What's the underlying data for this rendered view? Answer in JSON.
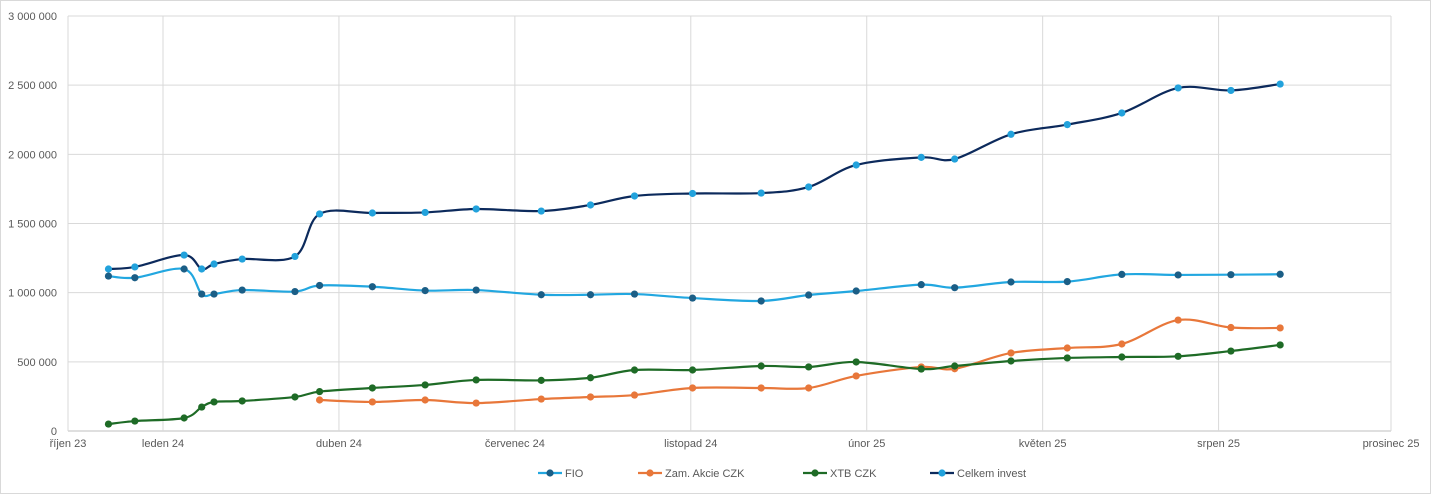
{
  "chart_data": {
    "type": "line",
    "title": "",
    "xlabel": "",
    "ylabel": "",
    "x_unit": "days from axis start (říjen 23)",
    "xlim": [
      0,
      752
    ],
    "ylim": [
      0,
      3000000
    ],
    "grid": true,
    "legend_position": "bottom",
    "y_ticks": [
      {
        "value": 0,
        "label": "0"
      },
      {
        "value": 500000,
        "label": "500 000"
      },
      {
        "value": 1000000,
        "label": "1 000 000"
      },
      {
        "value": 1500000,
        "label": "1 500 000"
      },
      {
        "value": 2000000,
        "label": "2 000 000"
      },
      {
        "value": 2500000,
        "label": "2 500 000"
      },
      {
        "value": 3000000,
        "label": "3 000 000"
      }
    ],
    "x_ticks": [
      {
        "value": 0,
        "label": "říjen 23"
      },
      {
        "value": 54,
        "label": "leden 24"
      },
      {
        "value": 154,
        "label": "duben 24"
      },
      {
        "value": 254,
        "label": "červenec 24"
      },
      {
        "value": 354,
        "label": "listopad 24"
      },
      {
        "value": 454,
        "label": "únor 25"
      },
      {
        "value": 554,
        "label": "květen 25"
      },
      {
        "value": 654,
        "label": "srpen 25"
      },
      {
        "value": 752,
        "label": "prosinec 25"
      }
    ],
    "series": [
      {
        "name": "FIO",
        "line_color": "#22a7e0",
        "marker_color": "#1b5e86",
        "x": [
          23,
          38,
          66,
          76,
          83,
          99,
          129,
          143,
          173,
          203,
          232,
          269,
          297,
          322,
          355,
          394,
          421,
          448,
          485,
          504,
          536,
          568,
          599,
          631,
          661,
          689
        ],
        "values": [
          1120000,
          1108000,
          1171000,
          990000,
          990000,
          1019000,
          1008000,
          1052000,
          1043000,
          1015000,
          1019000,
          985000,
          985000,
          990000,
          961000,
          940000,
          983000,
          1012000,
          1058000,
          1036000,
          1077000,
          1080000,
          1132000,
          1128000,
          1130000,
          1133000
        ]
      },
      {
        "name": "Zam. Akcie CZK",
        "line_color": "#e8773a",
        "marker_color": "#e8773a",
        "x": [
          143,
          173,
          203,
          232,
          269,
          297,
          322,
          355,
          394,
          421,
          448,
          485,
          504,
          536,
          568,
          599,
          631,
          661,
          689
        ],
        "values": [
          224000,
          210000,
          224000,
          202000,
          231000,
          246000,
          260000,
          311000,
          311000,
          311000,
          398000,
          463000,
          450000,
          564000,
          600000,
          629000,
          802000,
          748000,
          745000
        ]
      },
      {
        "name": "XTB CZK",
        "line_color": "#1e6b26",
        "marker_color": "#1e6b26",
        "x": [
          23,
          38,
          66,
          76,
          83,
          99,
          129,
          143,
          173,
          203,
          232,
          269,
          297,
          322,
          355,
          394,
          421,
          448,
          485,
          504,
          536,
          568,
          599,
          631,
          661,
          689
        ],
        "values": [
          50000,
          72000,
          94000,
          173000,
          210000,
          217000,
          246000,
          285000,
          311000,
          333000,
          369000,
          366000,
          385000,
          441000,
          441000,
          470000,
          463000,
          499000,
          448000,
          470000,
          506000,
          528000,
          535000,
          540000,
          578000,
          622000
        ]
      },
      {
        "name": "Celkem invest",
        "line_color": "#0c2a5c",
        "marker_color": "#22a2dc",
        "x": [
          23,
          38,
          66,
          76,
          83,
          99,
          129,
          143,
          173,
          203,
          232,
          269,
          297,
          322,
          355,
          394,
          421,
          448,
          485,
          504,
          536,
          568,
          599,
          631,
          661,
          689
        ],
        "values": [
          1171000,
          1186000,
          1272000,
          1171000,
          1207000,
          1243000,
          1262000,
          1569000,
          1576000,
          1580000,
          1605000,
          1590000,
          1634000,
          1699000,
          1717000,
          1720000,
          1764000,
          1923000,
          1978000,
          1966000,
          2145000,
          2215000,
          2299000,
          2480000,
          2462000,
          2508000
        ]
      }
    ]
  }
}
